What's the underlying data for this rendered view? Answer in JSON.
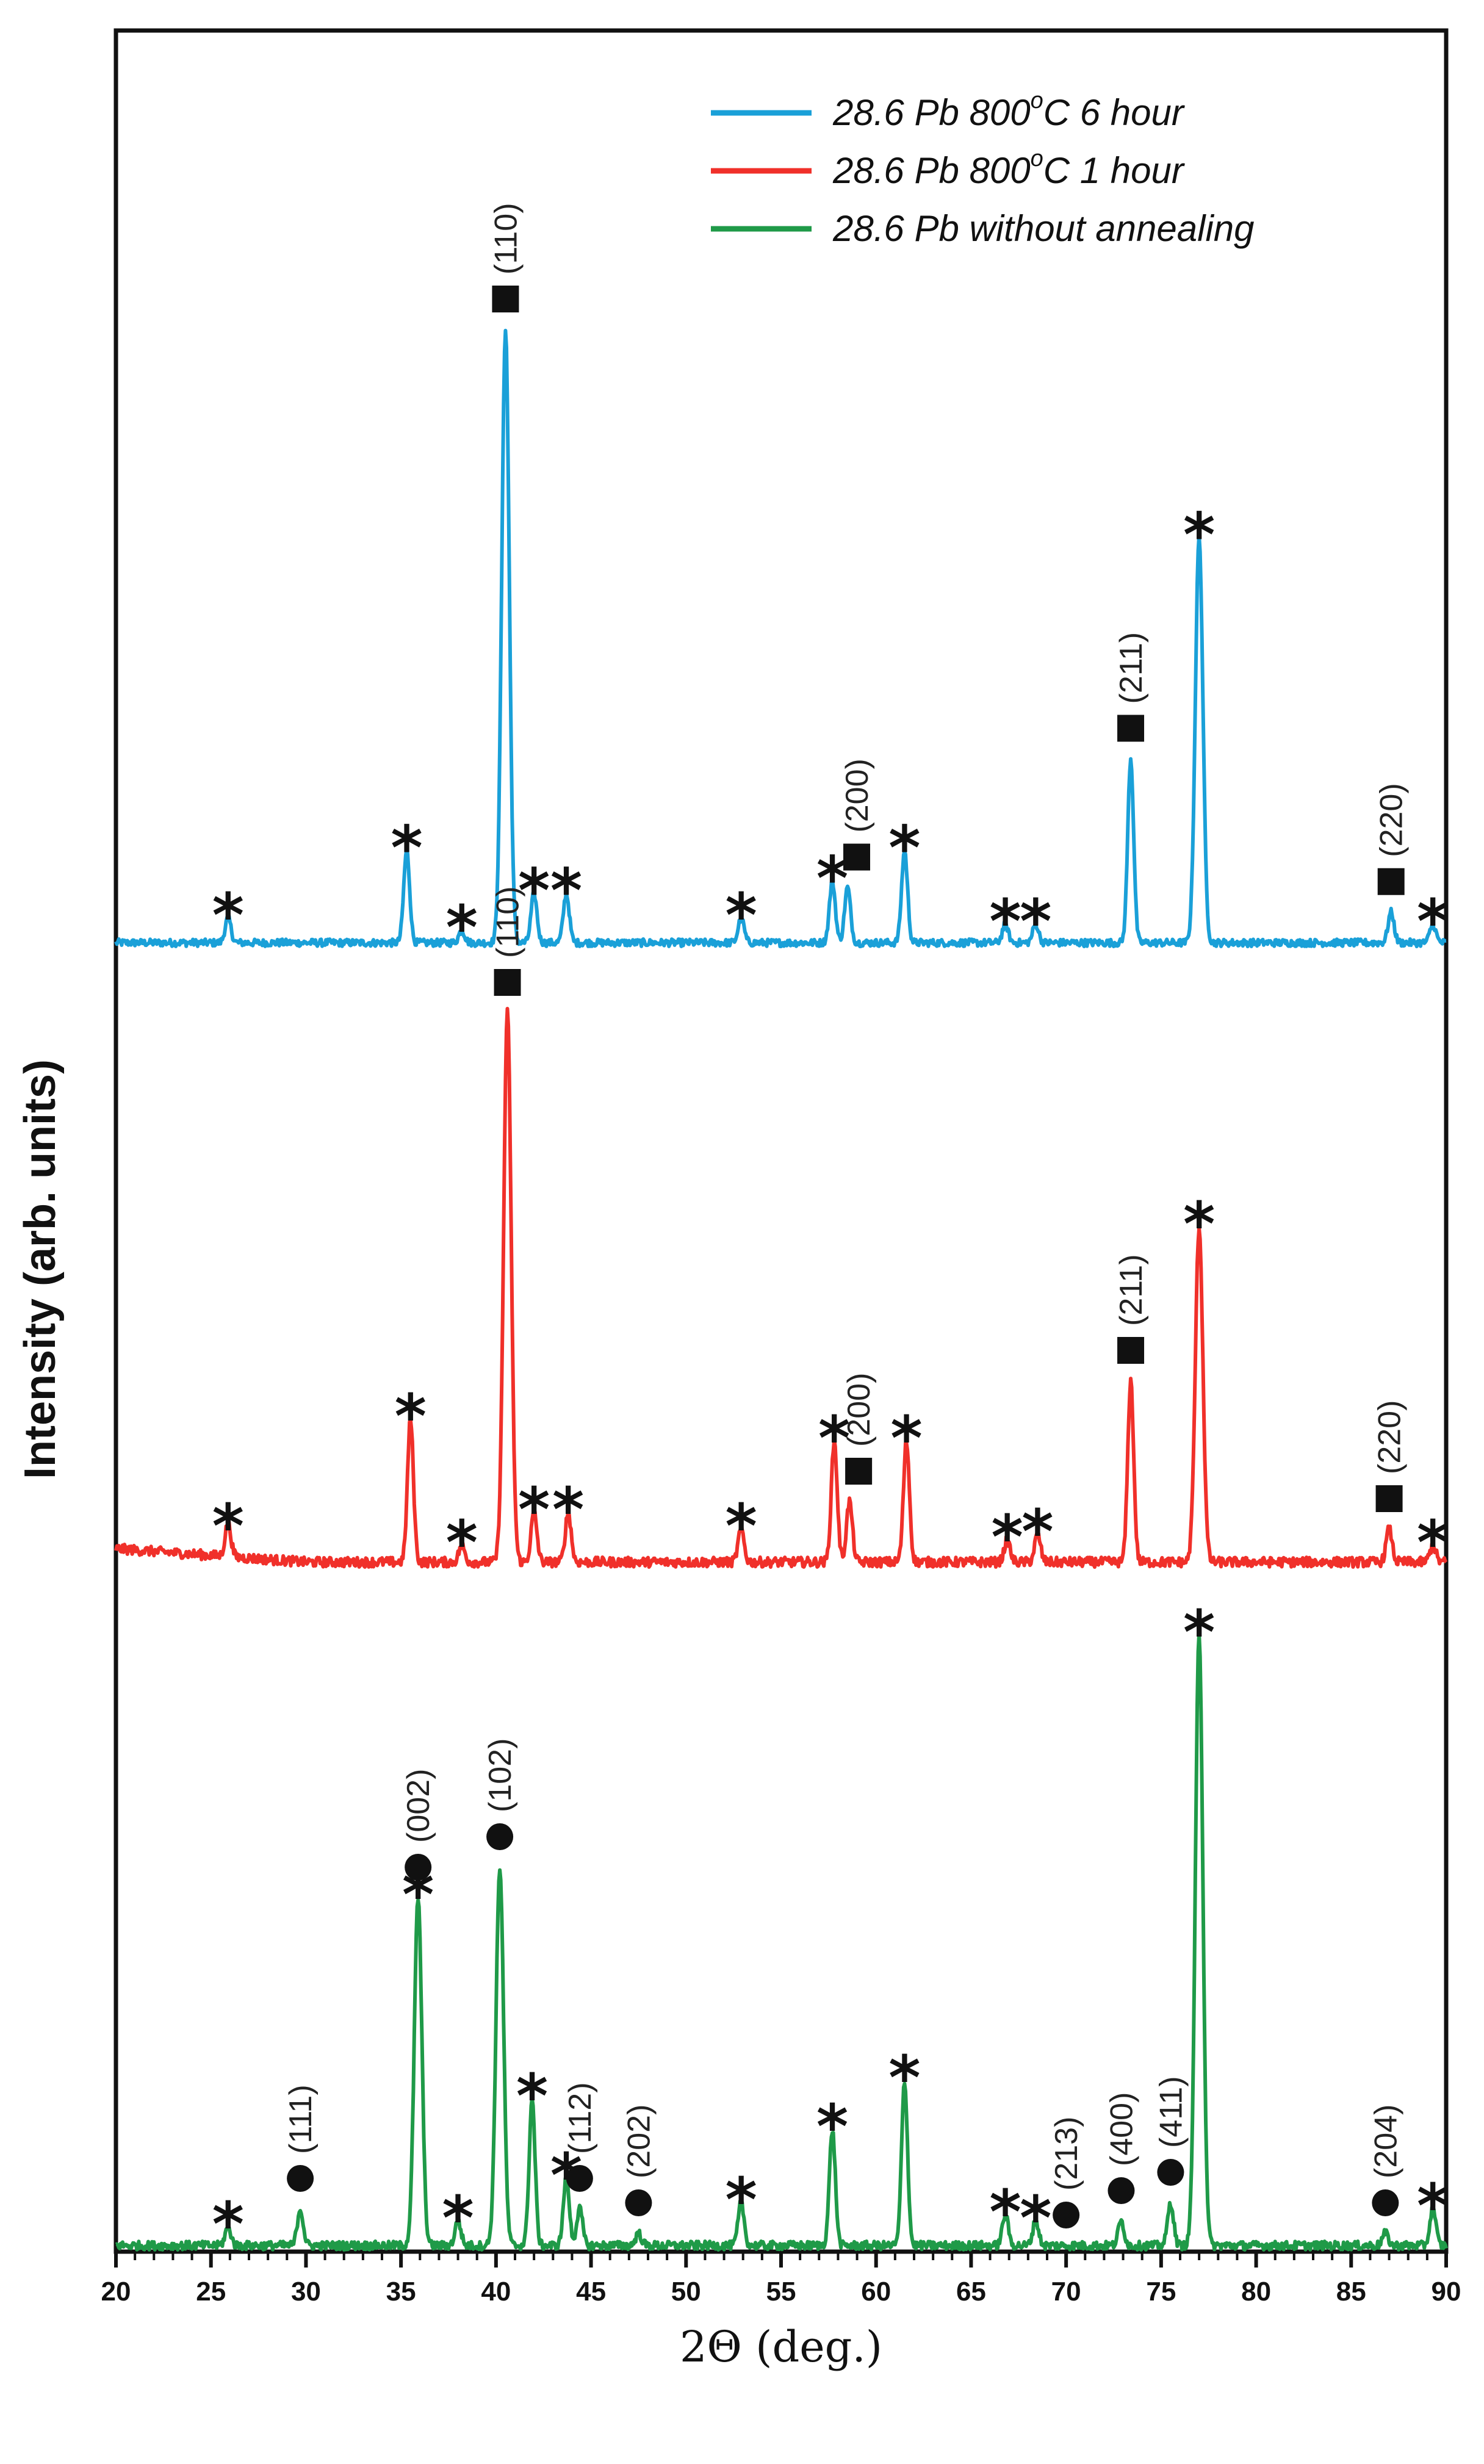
{
  "chart_data": {
    "type": "line",
    "xlabel": "2Θ (deg.)",
    "ylabel": "Intensity (arb. units)",
    "xlim": [
      20,
      90
    ],
    "xticks": [
      "20",
      "25",
      "30",
      "35",
      "40",
      "45",
      "50",
      "55",
      "60",
      "65",
      "70",
      "75",
      "80",
      "85",
      "90"
    ],
    "legend": [
      {
        "label_main": "28.6 Pb 800",
        "label_sup": "o",
        "label_tail": "C 6 hour",
        "color": "#1aa0d8"
      },
      {
        "label_main": "28.6 Pb 800",
        "label_sup": "o",
        "label_tail": "C 1 hour",
        "color": "#f0302a"
      },
      {
        "label_main": "28.6 Pb",
        "label_sup": "",
        "label_tail": " without annealing",
        "color": "#1f9a48"
      }
    ],
    "series": [
      {
        "name": "28.6 Pb 800°C 6 hour",
        "color": "#1aa0d8",
        "baseline": 0.0,
        "peaks": [
          {
            "x": 25.9,
            "h": 0.04
          },
          {
            "x": 35.3,
            "h": 0.15
          },
          {
            "x": 38.2,
            "h": 0.02
          },
          {
            "x": 40.5,
            "h": 1.0
          },
          {
            "x": 42.0,
            "h": 0.08
          },
          {
            "x": 43.7,
            "h": 0.08
          },
          {
            "x": 52.9,
            "h": 0.04
          },
          {
            "x": 57.7,
            "h": 0.1
          },
          {
            "x": 58.5,
            "h": 0.09
          },
          {
            "x": 61.5,
            "h": 0.15
          },
          {
            "x": 66.8,
            "h": 0.03
          },
          {
            "x": 68.4,
            "h": 0.03
          },
          {
            "x": 73.4,
            "h": 0.3
          },
          {
            "x": 77.0,
            "h": 0.66
          },
          {
            "x": 87.1,
            "h": 0.05
          },
          {
            "x": 89.3,
            "h": 0.03
          }
        ]
      },
      {
        "name": "28.6 Pb 800°C 1 hour",
        "color": "#f0302a",
        "baseline": 0.0,
        "peaks": [
          {
            "x": 25.9,
            "h": 0.06
          },
          {
            "x": 35.5,
            "h": 0.26
          },
          {
            "x": 38.2,
            "h": 0.03
          },
          {
            "x": 40.6,
            "h": 1.0
          },
          {
            "x": 42.0,
            "h": 0.09
          },
          {
            "x": 43.8,
            "h": 0.09
          },
          {
            "x": 52.9,
            "h": 0.06
          },
          {
            "x": 57.8,
            "h": 0.22
          },
          {
            "x": 58.6,
            "h": 0.11
          },
          {
            "x": 61.6,
            "h": 0.22
          },
          {
            "x": 66.9,
            "h": 0.04
          },
          {
            "x": 68.5,
            "h": 0.05
          },
          {
            "x": 73.4,
            "h": 0.33
          },
          {
            "x": 77.0,
            "h": 0.61
          },
          {
            "x": 87.0,
            "h": 0.06
          },
          {
            "x": 89.3,
            "h": 0.03
          }
        ]
      },
      {
        "name": "28.6 Pb without annealing",
        "color": "#1f9a48",
        "baseline": 0.0,
        "peaks": [
          {
            "x": 25.9,
            "h": 0.03
          },
          {
            "x": 29.7,
            "h": 0.06
          },
          {
            "x": 35.9,
            "h": 0.57
          },
          {
            "x": 38.0,
            "h": 0.04
          },
          {
            "x": 40.2,
            "h": 0.62
          },
          {
            "x": 41.9,
            "h": 0.24
          },
          {
            "x": 43.7,
            "h": 0.11
          },
          {
            "x": 44.4,
            "h": 0.06
          },
          {
            "x": 47.5,
            "h": 0.02
          },
          {
            "x": 52.9,
            "h": 0.07
          },
          {
            "x": 57.7,
            "h": 0.19
          },
          {
            "x": 61.5,
            "h": 0.27
          },
          {
            "x": 66.8,
            "h": 0.05
          },
          {
            "x": 68.4,
            "h": 0.04
          },
          {
            "x": 72.9,
            "h": 0.04
          },
          {
            "x": 75.5,
            "h": 0.07
          },
          {
            "x": 77.0,
            "h": 1.0
          },
          {
            "x": 86.8,
            "h": 0.02
          },
          {
            "x": 89.3,
            "h": 0.06
          }
        ]
      }
    ],
    "annotations": [
      {
        "series": 0,
        "marker": "square",
        "x": 40.5,
        "label": "(110)"
      },
      {
        "series": 0,
        "marker": "square",
        "x": 58.5,
        "label": "(200)"
      },
      {
        "series": 0,
        "marker": "square",
        "x": 73.4,
        "label": "(211)"
      },
      {
        "series": 0,
        "marker": "square",
        "x": 87.1,
        "label": "(220)"
      },
      {
        "series": 1,
        "marker": "square",
        "x": 40.6,
        "label": "(110)"
      },
      {
        "series": 1,
        "marker": "square",
        "x": 58.6,
        "label": "(200)"
      },
      {
        "series": 1,
        "marker": "square",
        "x": 73.4,
        "label": "(211)"
      },
      {
        "series": 1,
        "marker": "square",
        "x": 87.0,
        "label": "(220)"
      },
      {
        "series": 2,
        "marker": "circle",
        "x": 29.7,
        "label": "(111)"
      },
      {
        "series": 2,
        "marker": "circle",
        "x": 35.9,
        "label": "(002)"
      },
      {
        "series": 2,
        "marker": "circle",
        "x": 40.2,
        "label": "(102)"
      },
      {
        "series": 2,
        "marker": "circle",
        "x": 44.4,
        "label": "(112)"
      },
      {
        "series": 2,
        "marker": "circle",
        "x": 47.5,
        "label": "(202)"
      },
      {
        "series": 2,
        "marker": "circle",
        "x": 70.0,
        "label": "(213)"
      },
      {
        "series": 2,
        "marker": "circle",
        "x": 72.9,
        "label": "(400)"
      },
      {
        "series": 2,
        "marker": "circle",
        "x": 75.5,
        "label": "(411)"
      },
      {
        "series": 2,
        "marker": "circle",
        "x": 86.8,
        "label": "(204)"
      }
    ],
    "stars": [
      {
        "series": 0,
        "x": 25.9
      },
      {
        "series": 0,
        "x": 35.3
      },
      {
        "series": 0,
        "x": 38.2
      },
      {
        "series": 0,
        "x": 42.0
      },
      {
        "series": 0,
        "x": 43.7
      },
      {
        "series": 0,
        "x": 52.9
      },
      {
        "series": 0,
        "x": 57.7
      },
      {
        "series": 0,
        "x": 61.5
      },
      {
        "series": 0,
        "x": 66.8
      },
      {
        "series": 0,
        "x": 68.4
      },
      {
        "series": 0,
        "x": 77.0
      },
      {
        "series": 0,
        "x": 89.3
      },
      {
        "series": 1,
        "x": 25.9
      },
      {
        "series": 1,
        "x": 35.5
      },
      {
        "series": 1,
        "x": 38.2
      },
      {
        "series": 1,
        "x": 42.0
      },
      {
        "series": 1,
        "x": 43.8
      },
      {
        "series": 1,
        "x": 52.9
      },
      {
        "series": 1,
        "x": 57.8
      },
      {
        "series": 1,
        "x": 61.6
      },
      {
        "series": 1,
        "x": 66.9
      },
      {
        "series": 1,
        "x": 68.5
      },
      {
        "series": 1,
        "x": 77.0
      },
      {
        "series": 1,
        "x": 89.3
      },
      {
        "series": 2,
        "x": 25.9
      },
      {
        "series": 2,
        "x": 35.9
      },
      {
        "series": 2,
        "x": 38.0
      },
      {
        "series": 2,
        "x": 41.9
      },
      {
        "series": 2,
        "x": 43.7
      },
      {
        "series": 2,
        "x": 52.9
      },
      {
        "series": 2,
        "x": 57.7
      },
      {
        "series": 2,
        "x": 61.5
      },
      {
        "series": 2,
        "x": 66.8
      },
      {
        "series": 2,
        "x": 68.4
      },
      {
        "series": 2,
        "x": 77.0
      },
      {
        "series": 2,
        "x": 89.3
      }
    ],
    "star_symbol": "*"
  }
}
